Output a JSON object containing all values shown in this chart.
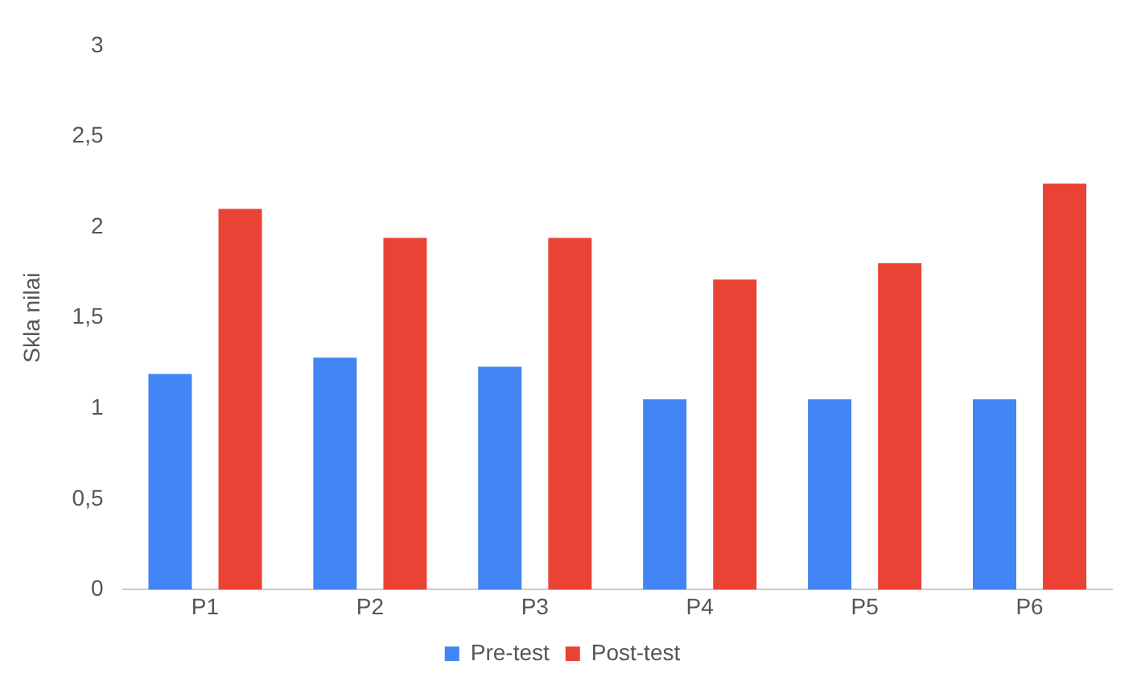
{
  "chart_data": {
    "type": "bar",
    "ylabel": "Skla nilai",
    "categories": [
      "P1",
      "P2",
      "P3",
      "P4",
      "P5",
      "P6"
    ],
    "series": [
      {
        "name": "Pre-test",
        "color": "#4285f4",
        "values": [
          1.19,
          1.28,
          1.23,
          1.05,
          1.05,
          1.05
        ]
      },
      {
        "name": "Post-test",
        "color": "#ea4335",
        "values": [
          2.1,
          1.94,
          1.94,
          1.71,
          1.8,
          2.24
        ]
      }
    ],
    "ylim": [
      0,
      3
    ],
    "yticks": [
      0,
      {
        "value": 0.5,
        "label": "0,5"
      },
      1,
      {
        "value": 1.5,
        "label": "1,5"
      },
      2,
      {
        "value": 2.5,
        "label": "2,5"
      },
      3
    ],
    "grid": false,
    "legend": "bottom"
  }
}
